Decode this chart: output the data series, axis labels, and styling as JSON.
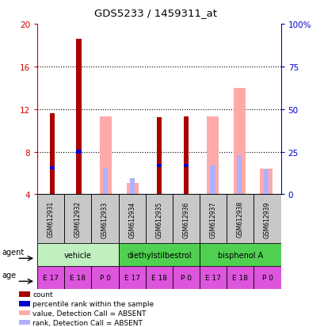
{
  "title": "GDS5233 / 1459311_at",
  "samples": [
    "GSM612931",
    "GSM612932",
    "GSM612933",
    "GSM612934",
    "GSM612935",
    "GSM612936",
    "GSM612937",
    "GSM612938",
    "GSM612939"
  ],
  "ylim_left": [
    4,
    20
  ],
  "ylim_right": [
    0,
    100
  ],
  "yticks_left": [
    4,
    8,
    12,
    16,
    20
  ],
  "yticks_right": [
    0,
    25,
    50,
    75,
    100
  ],
  "ytick_labels_right": [
    "0",
    "25",
    "50",
    "75",
    "100%"
  ],
  "red_bars": [
    11.6,
    18.6,
    0,
    0,
    11.2,
    11.3,
    0,
    0,
    0
  ],
  "blue_bars": [
    6.5,
    8.0,
    0,
    0,
    6.7,
    6.7,
    0,
    0,
    0
  ],
  "pink_bars": [
    0,
    0,
    11.3,
    5.1,
    0,
    0,
    11.3,
    14.0,
    6.4
  ],
  "light_blue_bars": [
    0,
    0,
    6.5,
    5.5,
    0,
    0,
    6.7,
    7.7,
    6.3
  ],
  "bar_bottom": 4,
  "red_color": "#aa0000",
  "blue_color": "#0000cc",
  "pink_color": "#ffaaaa",
  "light_blue_color": "#b0b0ff",
  "left_axis_color": "#cc0000",
  "right_axis_color": "#0000cc",
  "sample_bg_color": "#c8c8c8",
  "vehicle_color": "#c0f0c0",
  "diethyl_color": "#50d050",
  "bisphenol_color": "#50d050",
  "age_color": "#dd55dd",
  "age_labels": [
    "E 17",
    "E 18",
    "P 0",
    "E 17",
    "E 18",
    "P 0",
    "E 17",
    "E 18",
    "P 0"
  ],
  "legend_labels": [
    "count",
    "percentile rank within the sample",
    "value, Detection Call = ABSENT",
    "rank, Detection Call = ABSENT"
  ],
  "legend_colors": [
    "#aa0000",
    "#0000cc",
    "#ffaaaa",
    "#b0b0ff"
  ]
}
